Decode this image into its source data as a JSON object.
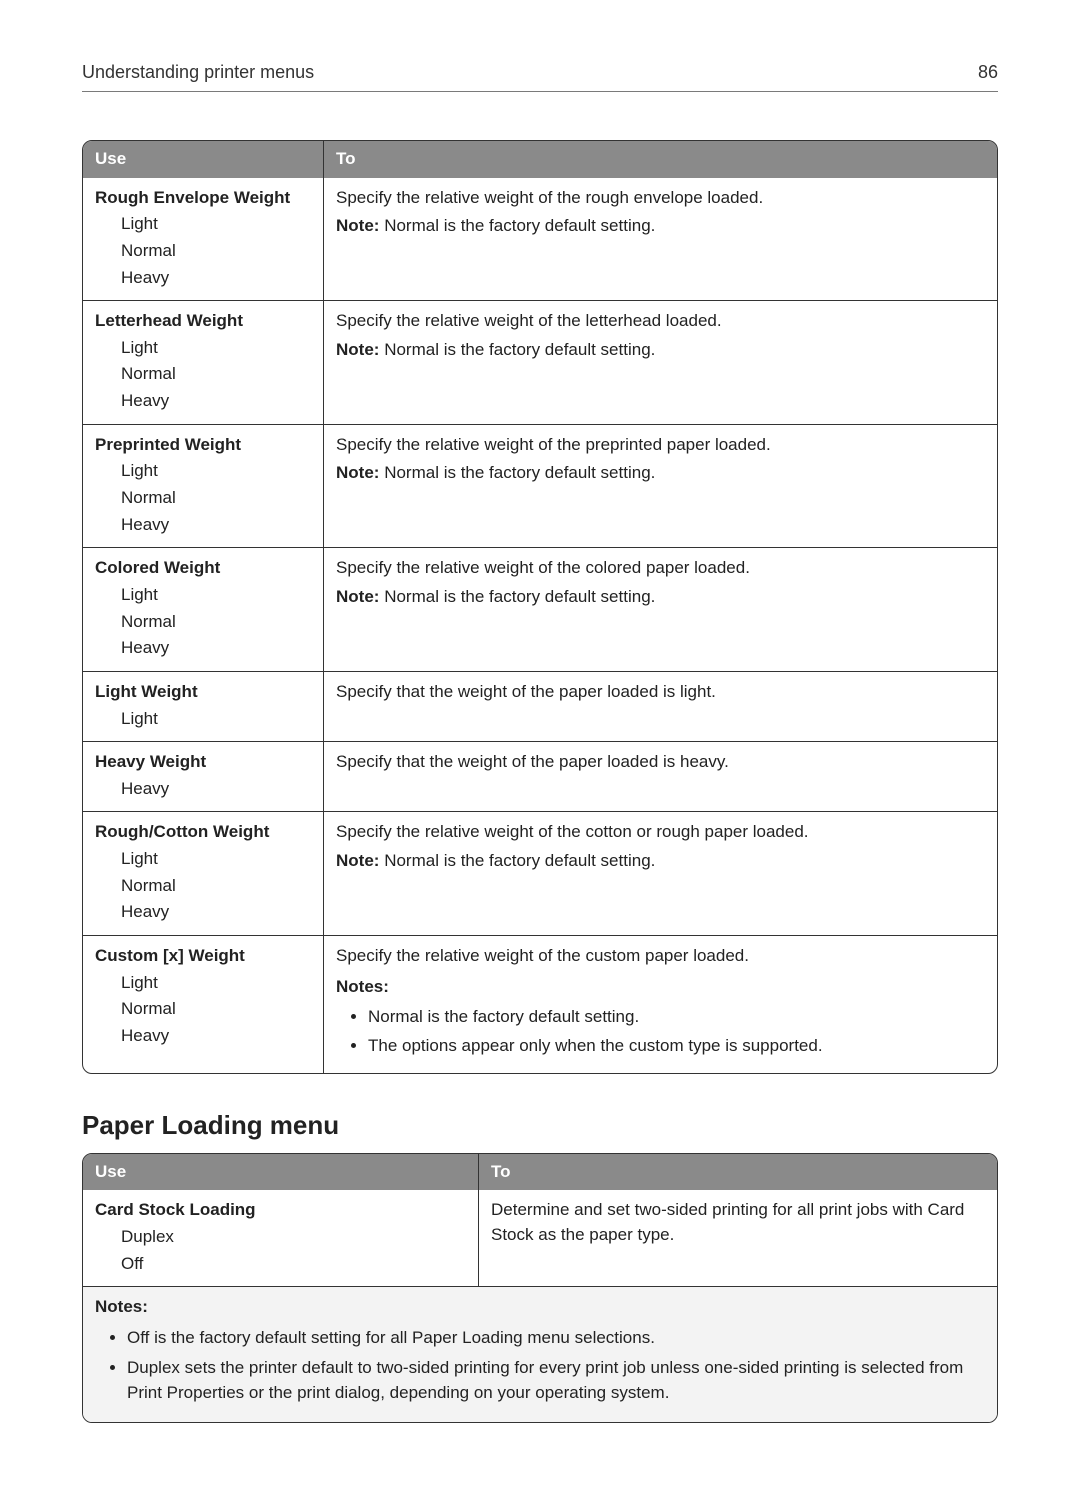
{
  "header": {
    "title": "Understanding printer menus",
    "page_number": "86"
  },
  "menu_table": {
    "columns": {
      "use": "Use",
      "to": "To"
    },
    "note_prefix": "Note:",
    "rows": [
      {
        "use_title": "Rough Envelope Weight",
        "options": [
          "Light",
          "Normal",
          "Heavy"
        ],
        "to_main": "Specify the relative weight of the rough envelope loaded.",
        "to_note": "Normal is the factory default setting."
      },
      {
        "use_title": "Letterhead Weight",
        "options": [
          "Light",
          "Normal",
          "Heavy"
        ],
        "to_main": "Specify the relative weight of the letterhead loaded.",
        "to_note": "Normal is the factory default setting."
      },
      {
        "use_title": "Preprinted Weight",
        "options": [
          "Light",
          "Normal",
          "Heavy"
        ],
        "to_main": "Specify the relative weight of the preprinted paper loaded.",
        "to_note": "Normal is the factory default setting."
      },
      {
        "use_title": "Colored Weight",
        "options": [
          "Light",
          "Normal",
          "Heavy"
        ],
        "to_main": "Specify the relative weight of the colored paper loaded.",
        "to_note": "Normal is the factory default setting."
      },
      {
        "use_title": "Light Weight",
        "options": [
          "Light"
        ],
        "to_main": "Specify that the weight of the paper loaded is light."
      },
      {
        "use_title": "Heavy Weight",
        "options": [
          "Heavy"
        ],
        "to_main": "Specify that the weight of the paper loaded is heavy."
      },
      {
        "use_title": "Rough/Cotton Weight",
        "options": [
          "Light",
          "Normal",
          "Heavy"
        ],
        "to_main": "Specify the relative weight of the cotton or rough paper loaded.",
        "to_note": "Normal is the factory default setting."
      },
      {
        "use_title": "Custom [x] Weight",
        "options": [
          "Light",
          "Normal",
          "Heavy"
        ],
        "to_main": "Specify the relative weight of the custom paper loaded.",
        "to_notes_label": "Notes:",
        "to_bullets": [
          "Normal is the factory default setting.",
          "The options appear only when the custom type is supported."
        ]
      }
    ]
  },
  "section_heading": "Paper Loading menu",
  "loading_table": {
    "columns": {
      "use": "Use",
      "to": "To"
    },
    "row": {
      "use_title": "Card Stock Loading",
      "options": [
        "Duplex",
        "Off"
      ],
      "to_text": "Determine and set two‑sided printing for all print jobs with Card Stock as the paper type."
    },
    "notes_label": "Notes:",
    "notes": [
      "Off is the factory default setting for all Paper Loading menu selections.",
      "Duplex sets the printer default to two‑sided printing for every print job unless one‑sided printing is selected from Print Properties or the print dialog, depending on your operating system."
    ]
  }
}
